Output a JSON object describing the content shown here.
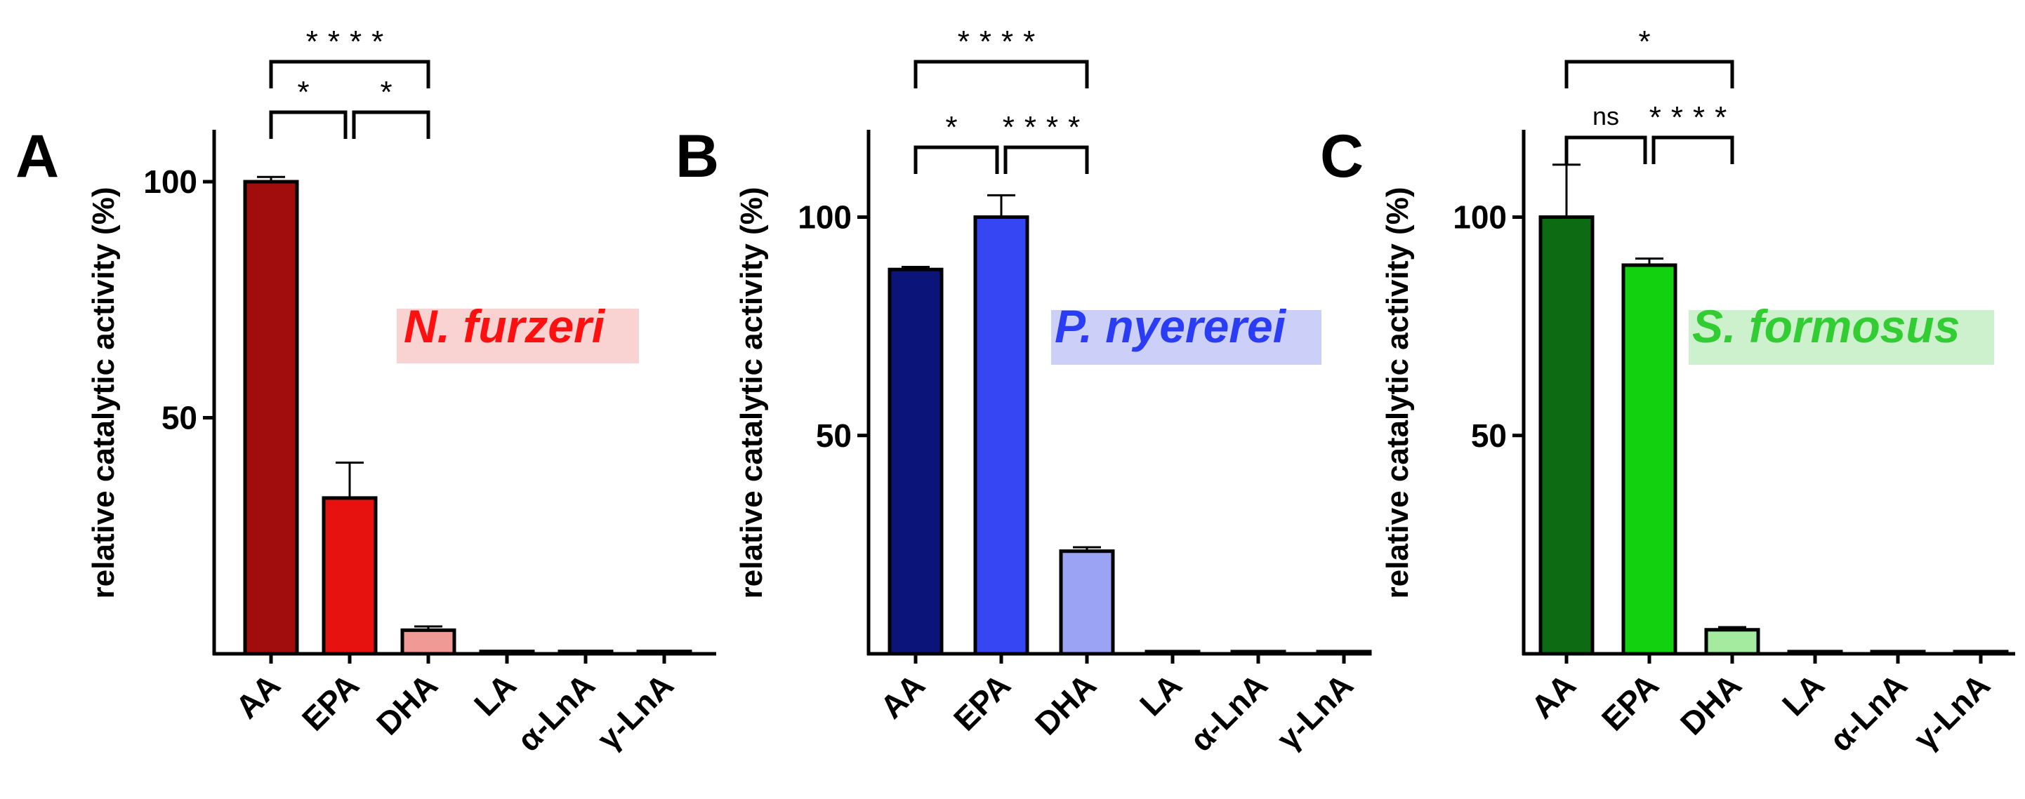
{
  "chart_data": [
    {
      "type": "bar",
      "panel": "A",
      "species": "N. furzeri",
      "categories": [
        "AA",
        "EPA",
        "DHA",
        "LA",
        "α-LnA",
        "γ-LnA"
      ],
      "values": [
        100,
        33,
        5,
        0.5,
        0.5,
        0.5
      ],
      "errors": [
        1,
        7.5,
        0.8,
        0,
        0,
        0
      ],
      "colors": [
        "#a10d0d",
        "#e5120f",
        "#ef9a94",
        "#e5120f",
        "#e5120f",
        "#e5120f"
      ],
      "accent": "#ff1010",
      "highlight": "#f9d2d2",
      "ylabel": "relative catalytic activity (%)",
      "xlabel": "",
      "yticks": [
        50,
        100
      ],
      "ytick_labels": [
        "50",
        "100"
      ],
      "ylim": [
        0,
        111
      ],
      "significance": [
        {
          "from": 0,
          "to": 1,
          "label": "*"
        },
        {
          "from": 1,
          "to": 2,
          "label": "*"
        },
        {
          "from": 0,
          "to": 2,
          "label": "****"
        }
      ]
    },
    {
      "type": "bar",
      "panel": "B",
      "species": "P. nyererei",
      "categories": [
        "AA",
        "EPA",
        "DHA",
        "LA",
        "α-LnA",
        "γ-LnA"
      ],
      "values": [
        88,
        100,
        23.5,
        0.5,
        0.5,
        0.5
      ],
      "errors": [
        0.6,
        5,
        0.9,
        0,
        0,
        0
      ],
      "colors": [
        "#0b1478",
        "#3546f2",
        "#9ba3f5",
        "#3546f2",
        "#3546f2",
        "#3546f2"
      ],
      "accent": "#2a3cf4",
      "highlight": "#ccd0f9",
      "ylabel": "relative catalytic activity (%)",
      "xlabel": "",
      "yticks": [
        50,
        100
      ],
      "ytick_labels": [
        "50",
        "100"
      ],
      "ylim": [
        0,
        120
      ],
      "significance": [
        {
          "from": 0,
          "to": 1,
          "label": "*"
        },
        {
          "from": 1,
          "to": 2,
          "label": "****"
        },
        {
          "from": 0,
          "to": 2,
          "label": "****"
        }
      ]
    },
    {
      "type": "bar",
      "panel": "C",
      "species": "S. formosus",
      "categories": [
        "AA",
        "EPA",
        "DHA",
        "LA",
        "α-LnA",
        "γ-LnA"
      ],
      "values": [
        100,
        89,
        5.5,
        0.5,
        0.5,
        0.5
      ],
      "errors": [
        12,
        1.5,
        0.6,
        0,
        0,
        0
      ],
      "colors": [
        "#0c6b13",
        "#12d20f",
        "#a4eba0",
        "#12d20f",
        "#12d20f",
        "#12d20f"
      ],
      "accent": "#32cd32",
      "highlight": "#cdf0cd",
      "ylabel": "relative catalytic activity (%)",
      "xlabel": "",
      "yticks": [
        50,
        100
      ],
      "ytick_labels": [
        "50",
        "100"
      ],
      "ylim": [
        0,
        120
      ],
      "significance": [
        {
          "from": 0,
          "to": 1,
          "label": "ns"
        },
        {
          "from": 1,
          "to": 2,
          "label": "****"
        },
        {
          "from": 0,
          "to": 2,
          "label": "*"
        }
      ]
    }
  ]
}
